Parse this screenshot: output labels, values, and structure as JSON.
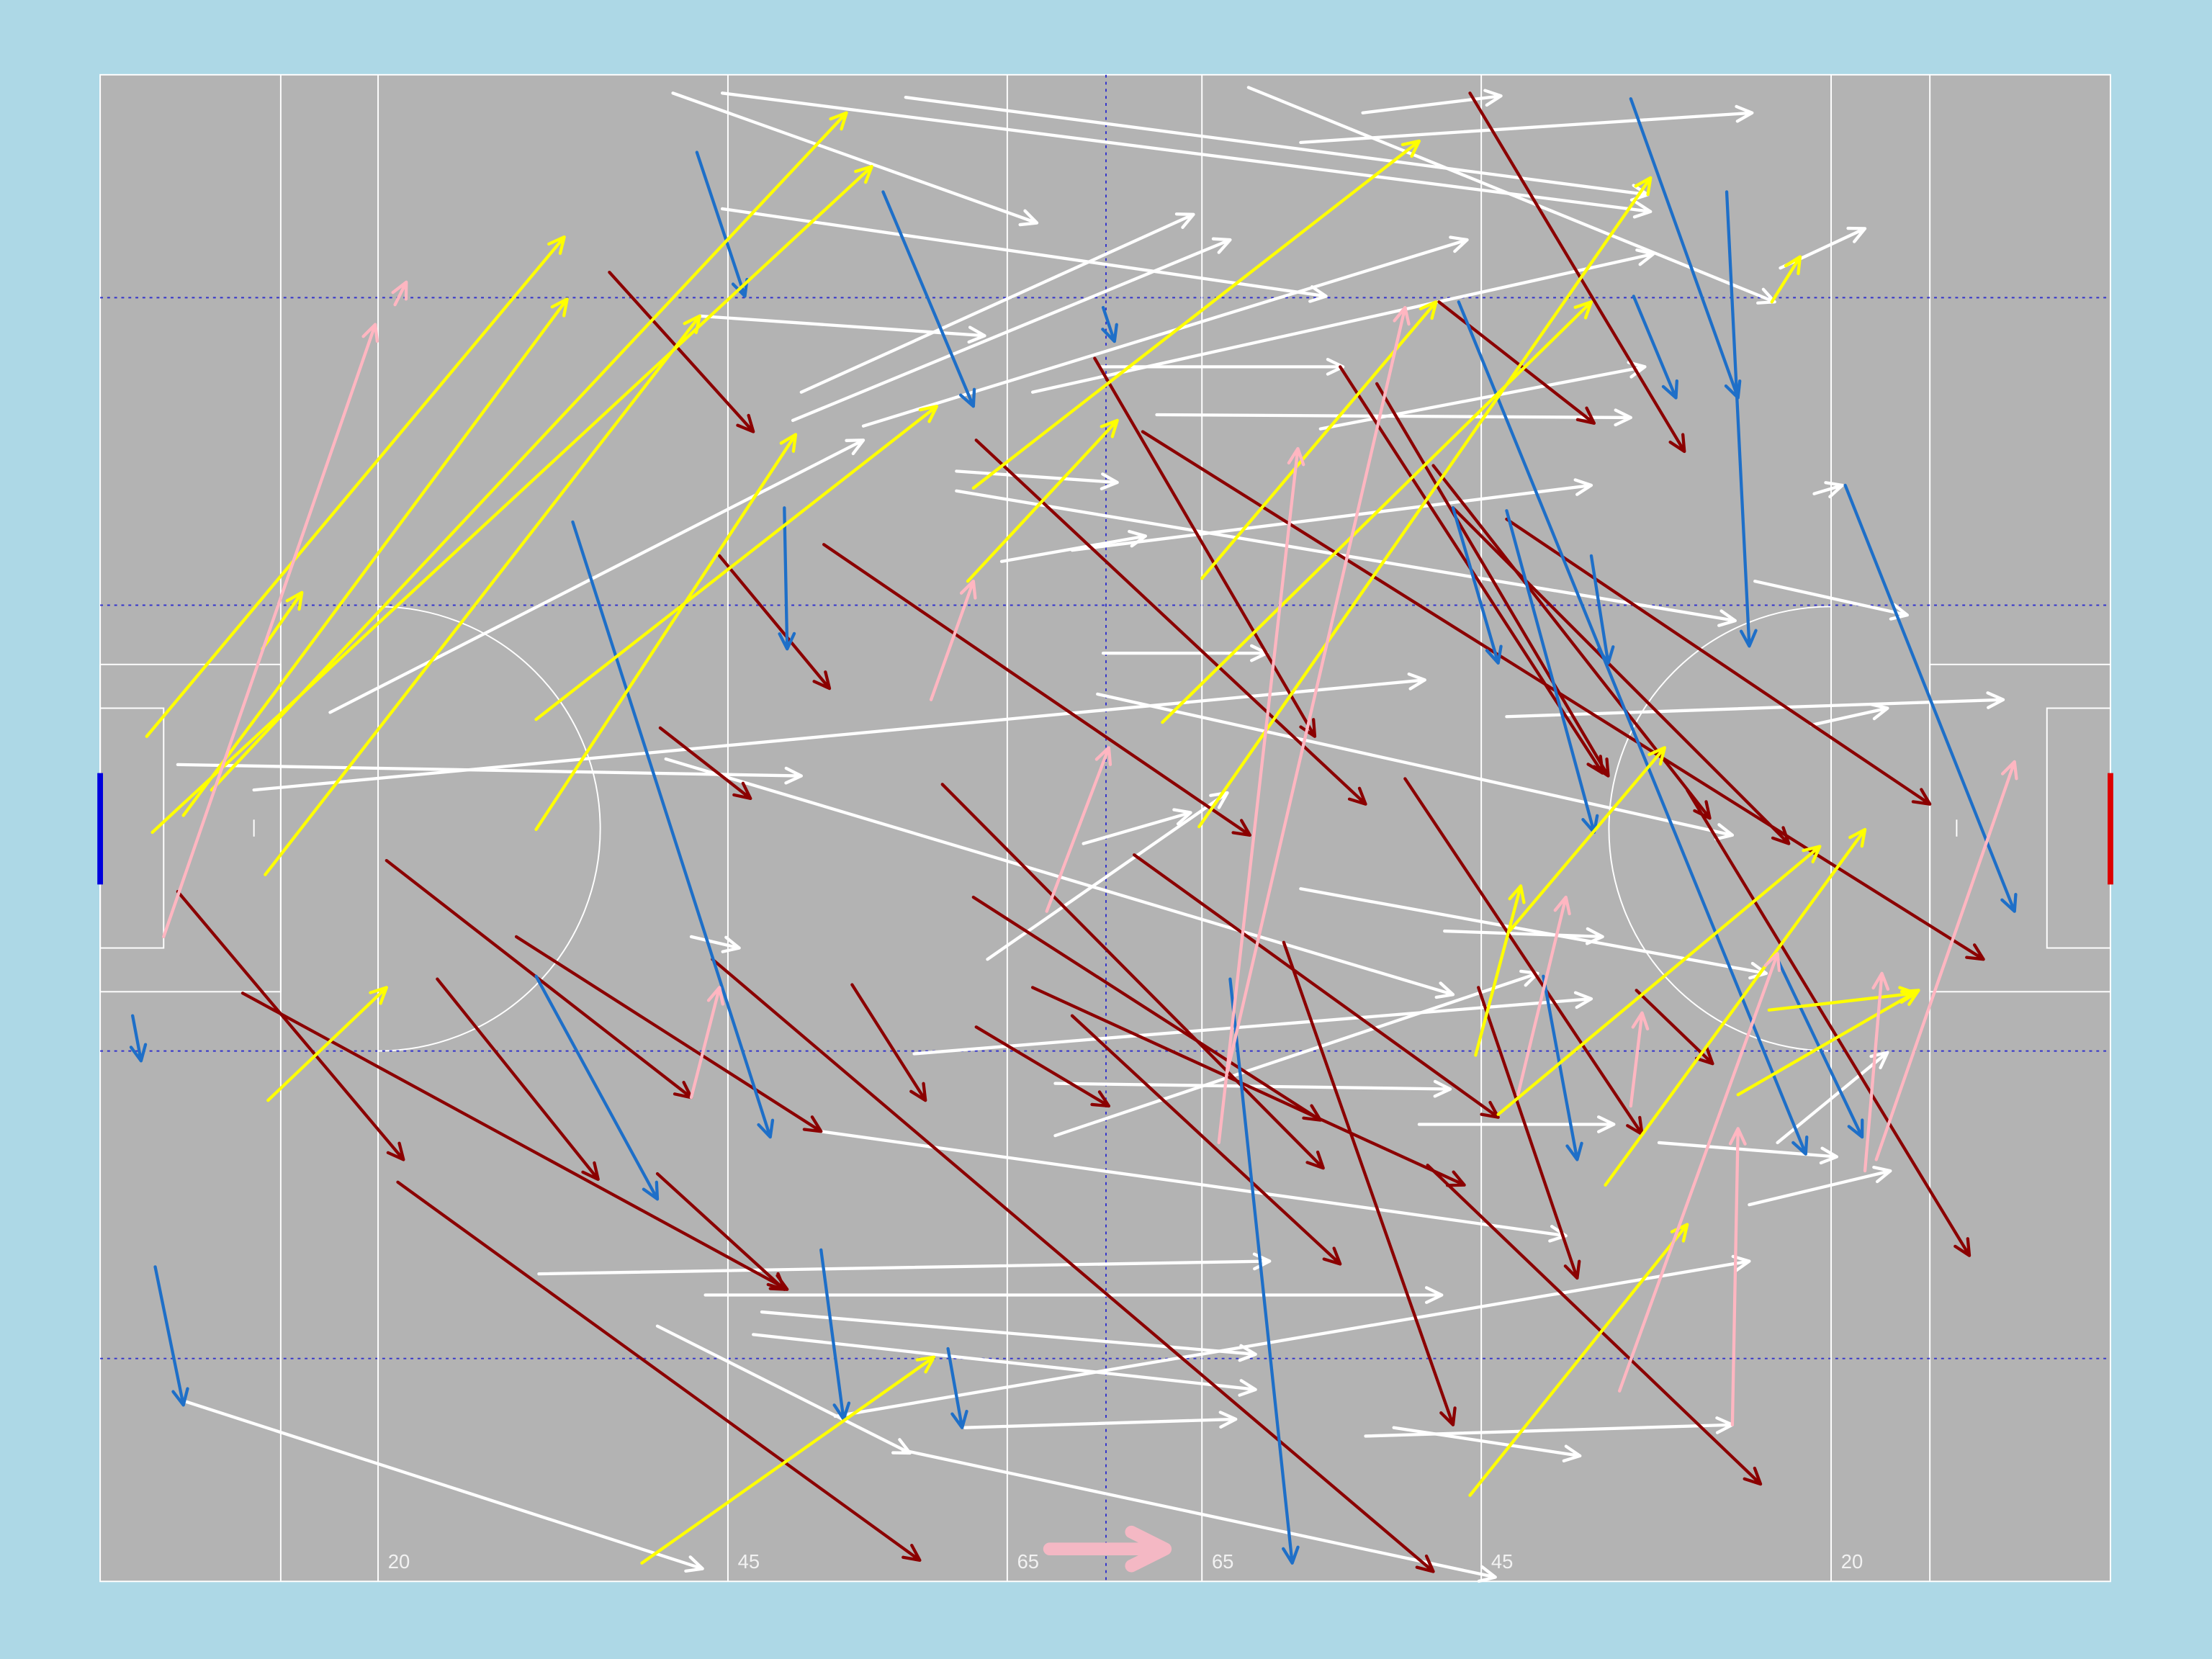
{
  "chart_data": {
    "type": "arrows",
    "xlim": [
      0,
      1425
    ],
    "ylim": [
      0,
      1068
    ],
    "xticks": [
      {
        "value": 197,
        "label": "20"
      },
      {
        "value": 445,
        "label": "45"
      },
      {
        "value": 643,
        "label": "65"
      },
      {
        "value": 781,
        "label": "65"
      },
      {
        "value": 979,
        "label": "45"
      },
      {
        "value": 1227,
        "label": "20"
      }
    ],
    "series": [
      {
        "color": "#ffffff",
        "x0": [
          406,
          441,
          571,
          814,
          895,
          851,
          441,
          425,
          497,
          491,
          541,
          661,
          709,
          749,
          865,
          607,
          607,
          639,
          689,
          163,
          711,
          55,
          109,
          401,
          707,
          697,
          629,
          851,
          953,
          997,
          1213,
          1173,
          1215,
          1191,
          577,
          677,
          677,
          511,
          935,
          1169,
          1189,
          311,
          429,
          469,
          463,
          395,
          521,
          613,
          897,
          917,
          569,
          59,
          419,
          1105
        ],
        "y0": [
          13,
          13,
          16,
          9,
          27,
          48,
          95,
          171,
          225,
          245,
          249,
          225,
          207,
          241,
          251,
          281,
          295,
          345,
          337,
          452,
          410,
          489,
          507,
          485,
          439,
          545,
          627,
          577,
          607,
          455,
          461,
          359,
          297,
          137,
          694,
          715,
          752,
          749,
          744,
          801,
          757,
          850,
          865,
          877,
          893,
          887,
          951,
          959,
          965,
          959,
          975,
          940,
          611,
          757
        ],
        "x1": [
          664,
          1099,
          1097,
          1187,
          993,
          1171,
          869,
          627,
          775,
          801,
          969,
          1101,
          881,
          1085,
          1095,
          721,
          1159,
          741,
          1057,
          541,
          827,
          497,
          939,
          959,
          1157,
          773,
          799,
          1181,
          1065,
          1349,
          1267,
          1281,
          1235,
          1251,
          1057,
          957,
          1019,
          1039,
          1073,
          1269,
          1267,
          829,
          951,
          819,
          819,
          574,
          1169,
          805,
          1157,
          1049,
          989,
          427,
          453,
          1231
        ],
        "y1": [
          105,
          97,
          85,
          161,
          15,
          27,
          157,
          185,
          99,
          117,
          117,
          127,
          207,
          243,
          207,
          289,
          387,
          327,
          291,
          259,
          410,
          497,
          429,
          652,
          539,
          523,
          509,
          637,
          611,
          443,
          449,
          383,
          291,
          109,
          655,
          719,
          637,
          823,
          744,
          777,
          693,
          841,
          865,
          907,
          932,
          977,
          841,
          953,
          957,
          979,
          1065,
          1059,
          619,
          767
        ]
      },
      {
        "color": "#8b0000",
        "x0": [
          971,
          361,
          949,
          705,
          879,
          905,
          945,
          959,
          997,
          621,
          739,
          513,
          439,
          397,
          55,
          203,
          295,
          239,
          101,
          211,
          395,
          533,
          597,
          619,
          661,
          621,
          733,
          839,
          925,
          1089,
          977,
          1125,
          941,
          689,
          434
        ],
        "y0": [
          13,
          140,
          161,
          201,
          207,
          219,
          277,
          307,
          315,
          259,
          253,
          333,
          341,
          463,
          579,
          557,
          611,
          641,
          651,
          785,
          779,
          645,
          503,
          583,
          647,
          675,
          553,
          615,
          499,
          649,
          647,
          507,
          773,
          667,
          627
        ],
        "x1": [
          1123,
          463,
          1059,
          861,
          1065,
          1069,
          1141,
          1197,
          1297,
          897,
          1335,
          815,
          517,
          461,
          215,
          419,
          511,
          353,
          487,
          581,
          485,
          585,
          867,
          865,
          967,
          715,
          991,
          959,
          1093,
          1143,
          1047,
          1325,
          1177,
          879,
          945
        ],
        "y1": [
          267,
          253,
          247,
          469,
          495,
          497,
          527,
          545,
          517,
          517,
          627,
          539,
          435,
          513,
          769,
          725,
          749,
          783,
          861,
          1053,
          861,
          727,
          775,
          741,
          787,
          731,
          739,
          957,
          751,
          701,
          853,
          837,
          999,
          843,
          1061
        ]
      },
      {
        "color": "#1e6fc8",
        "x0": [
          423,
          555,
          711,
          1085,
          1153,
          1087,
          963,
          997,
          1057,
          959,
          1237,
          485,
          335,
          309,
          23,
          39,
          511,
          601,
          801,
          1023,
          1189
        ],
        "y0": [
          55,
          83,
          165,
          17,
          83,
          157,
          161,
          309,
          341,
          307,
          291,
          307,
          317,
          639,
          667,
          845,
          833,
          903,
          641,
          639,
          627
        ],
        "x1": [
          457,
          619,
          719,
          1161,
          1169,
          1117,
          1209,
          1059,
          1069,
          991,
          1357,
          487,
          475,
          395,
          29,
          59,
          527,
          611,
          845,
          1047,
          1249
        ],
        "y1": [
          157,
          235,
          189,
          229,
          405,
          229,
          765,
          537,
          417,
          417,
          593,
          407,
          753,
          797,
          699,
          943,
          953,
          959,
          1055,
          769,
          753
        ]
      },
      {
        "color": "#ffff00",
        "x0": [
          33,
          59,
          79,
          37,
          117,
          115,
          309,
          309,
          119,
          384,
          619,
          615,
          781,
          753,
          779,
          975,
          991,
          1067,
          971,
          1161,
          1183,
          1185,
          999
        ],
        "y0": [
          469,
          525,
          507,
          537,
          567,
          407,
          535,
          457,
          727,
          1055,
          293,
          359,
          357,
          459,
          533,
          695,
          737,
          787,
          1007,
          723,
          663,
          161,
          607
        ],
        "x1": [
          329,
          331,
          529,
          547,
          425,
          143,
          493,
          593,
          203,
          591,
          935,
          721,
          947,
          1057,
          1099,
          1007,
          1219,
          1251,
          1125,
          1289,
          1287,
          1205,
          1109
        ],
        "y1": [
          115,
          159,
          27,
          65,
          171,
          367,
          255,
          235,
          647,
          909,
          47,
          245,
          161,
          161,
          73,
          575,
          547,
          535,
          815,
          649,
          651,
          129,
          477
        ]
      },
      {
        "color": "#ffb6c1",
        "x0": [
          45,
          209,
          589,
          671,
          419,
          793,
          799,
          1005,
          1085,
          1077,
          1157,
          1251,
          1259
        ],
        "y0": [
          611,
          163,
          443,
          593,
          725,
          757,
          707,
          723,
          731,
          933,
          957,
          777,
          769
        ],
        "x1": [
          195,
          217,
          619,
          715,
          439,
          849,
          925,
          1039,
          1093,
          1189,
          1161,
          1263,
          1357
        ],
        "y1": [
          177,
          147,
          359,
          477,
          647,
          265,
          165,
          583,
          665,
          623,
          747,
          637,
          487
        ]
      }
    ]
  }
}
